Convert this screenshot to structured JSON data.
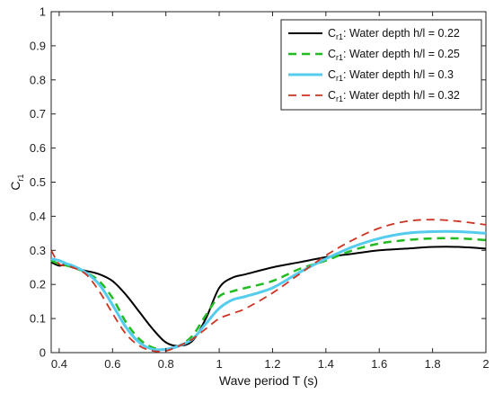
{
  "chart_data": {
    "type": "line",
    "xlabel": "Wave period T (s)",
    "ylabel": "C",
    "ylabel_sub": "r1",
    "xlim": [
      0.37,
      2.0
    ],
    "ylim": [
      0,
      1
    ],
    "xticks": [
      0.4,
      0.6,
      0.8,
      1,
      1.2,
      1.4,
      1.6,
      1.8,
      2
    ],
    "xtick_labels": [
      "0.4",
      "0.6",
      "0.8",
      "1",
      "1.2",
      "1.4",
      "1.6",
      "1.8",
      "2"
    ],
    "yticks": [
      0,
      0.1,
      0.2,
      0.3,
      0.4,
      0.5,
      0.6,
      0.7,
      0.8,
      0.9,
      1
    ],
    "ytick_labels": [
      "0",
      "0.1",
      "0.2",
      "0.3",
      "0.4",
      "0.5",
      "0.6",
      "0.7",
      "0.8",
      "0.9",
      "1"
    ],
    "grid": false,
    "legend_position": "top-right",
    "series": [
      {
        "name": "C",
        "name_sub": "r1",
        "name_rest": ": Water depth h/l = 0.22",
        "color": "#000000",
        "dash": "solid",
        "x": [
          0.37,
          0.4,
          0.43,
          0.45,
          0.5,
          0.55,
          0.6,
          0.65,
          0.7,
          0.75,
          0.8,
          0.85,
          0.9,
          0.95,
          1.0,
          1.05,
          1.1,
          1.2,
          1.3,
          1.4,
          1.5,
          1.6,
          1.7,
          1.8,
          1.9,
          2.0
        ],
        "y": [
          0.265,
          0.255,
          0.26,
          0.25,
          0.24,
          0.23,
          0.21,
          0.17,
          0.12,
          0.07,
          0.03,
          0.02,
          0.035,
          0.1,
          0.19,
          0.22,
          0.23,
          0.25,
          0.265,
          0.28,
          0.29,
          0.3,
          0.305,
          0.31,
          0.31,
          0.305
        ]
      },
      {
        "name": "C",
        "name_sub": "r1",
        "name_rest": ": Water depth h/l = 0.25",
        "color": "#22bb22",
        "dash": "dashed",
        "x": [
          0.37,
          0.4,
          0.43,
          0.45,
          0.5,
          0.55,
          0.6,
          0.65,
          0.7,
          0.75,
          0.8,
          0.85,
          0.9,
          0.95,
          1.0,
          1.05,
          1.1,
          1.2,
          1.3,
          1.4,
          1.5,
          1.6,
          1.7,
          1.8,
          1.9,
          2.0
        ],
        "y": [
          0.27,
          0.26,
          0.255,
          0.25,
          0.235,
          0.21,
          0.16,
          0.09,
          0.04,
          0.015,
          0.01,
          0.02,
          0.05,
          0.11,
          0.165,
          0.18,
          0.19,
          0.21,
          0.245,
          0.27,
          0.3,
          0.32,
          0.33,
          0.335,
          0.335,
          0.33
        ]
      },
      {
        "name": "C",
        "name_sub": "r1",
        "name_rest": ": Water depth h/l = 0.3",
        "color": "#55ccee",
        "dash": "solid",
        "x": [
          0.37,
          0.4,
          0.43,
          0.45,
          0.5,
          0.55,
          0.6,
          0.65,
          0.7,
          0.75,
          0.8,
          0.85,
          0.9,
          0.95,
          1.0,
          1.05,
          1.1,
          1.2,
          1.3,
          1.4,
          1.5,
          1.6,
          1.7,
          1.8,
          1.9,
          2.0
        ],
        "y": [
          0.275,
          0.27,
          0.26,
          0.255,
          0.235,
          0.2,
          0.14,
          0.075,
          0.03,
          0.01,
          0.01,
          0.02,
          0.04,
          0.085,
          0.13,
          0.155,
          0.165,
          0.19,
          0.235,
          0.275,
          0.31,
          0.335,
          0.35,
          0.355,
          0.355,
          0.35
        ]
      },
      {
        "name": "C",
        "name_sub": "r1",
        "name_rest": ": Water depth h/l = 0.32",
        "color": "#cc3322",
        "dash": "dashed",
        "x": [
          0.37,
          0.4,
          0.43,
          0.45,
          0.5,
          0.55,
          0.6,
          0.65,
          0.7,
          0.75,
          0.8,
          0.85,
          0.9,
          0.95,
          1.0,
          1.05,
          1.1,
          1.2,
          1.3,
          1.4,
          1.5,
          1.6,
          1.7,
          1.8,
          1.9,
          2.0
        ],
        "y": [
          0.3,
          0.26,
          0.255,
          0.25,
          0.23,
          0.18,
          0.115,
          0.055,
          0.02,
          0.005,
          0.005,
          0.02,
          0.04,
          0.07,
          0.1,
          0.115,
          0.13,
          0.175,
          0.23,
          0.285,
          0.33,
          0.365,
          0.385,
          0.39,
          0.385,
          0.375
        ]
      }
    ]
  }
}
